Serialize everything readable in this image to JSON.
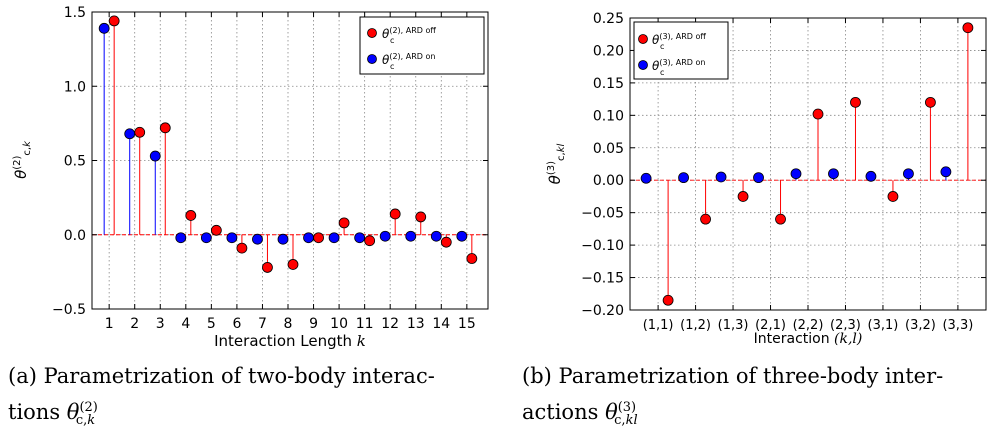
{
  "charts": {
    "a": {
      "xlabel": "Interaction Length k",
      "ylabel": "θ(2)c,k",
      "ylim": [
        -0.5,
        1.5
      ],
      "yticks": [
        -0.5,
        0.0,
        0.5,
        1.0,
        1.5
      ],
      "yticklabels": [
        "−0.5",
        "0.0",
        "0.5",
        "1.0",
        "1.5"
      ],
      "categories": [
        "1",
        "2",
        "3",
        "4",
        "5",
        "6",
        "7",
        "8",
        "9",
        "10",
        "11",
        "12",
        "13",
        "14",
        "15"
      ],
      "caption": "(a) Parametrization of two-body interactions θ(2)c,k"
    },
    "b": {
      "xlabel": "Interaction (k,l)",
      "ylabel": "θ(3)c,kl",
      "ylim": [
        -0.2,
        0.25
      ],
      "yticks": [
        -0.2,
        -0.15,
        -0.1,
        -0.05,
        0.0,
        0.05,
        0.1,
        0.15,
        0.2,
        0.25
      ],
      "yticklabels": [
        "−0.20",
        "−0.15",
        "−0.10",
        "−0.05",
        "0.00",
        "0.05",
        "0.10",
        "0.15",
        "0.20",
        "0.25"
      ],
      "categories": [
        "(1,1)",
        "(1,2)",
        "(1,3)",
        "(2,1)",
        "(2,2)",
        "(2,3)",
        "(3,1)",
        "(3,2)",
        "(3,3)"
      ],
      "caption": "(b) Parametrization of three-body interactions θ(3)c,kl"
    }
  },
  "legend": {
    "a_off": "θ(2), ARD off",
    "a_on": "θ(2), ARD on",
    "b_off": "θ(3), ARD off",
    "b_on": "θ(3), ARD on"
  },
  "colors": {
    "ard_off": "#ff0000",
    "ard_on": "#0000ff"
  },
  "chart_data": [
    {
      "type": "scatter",
      "style": "stem",
      "xlabel": "Interaction Length k",
      "ylabel": "θ(2)c,k",
      "ylim": [
        -0.5,
        1.5
      ],
      "grid": true,
      "legend_position": "top-right",
      "categories": [
        1,
        2,
        3,
        4,
        5,
        6,
        7,
        8,
        9,
        10,
        11,
        12,
        13,
        14,
        15
      ],
      "series": [
        {
          "name": "θ(2), ARD off",
          "color": "#ff0000",
          "values": [
            1.44,
            0.69,
            0.72,
            0.13,
            0.03,
            -0.09,
            -0.22,
            -0.2,
            -0.02,
            0.08,
            -0.04,
            0.14,
            0.12,
            -0.05,
            -0.16
          ]
        },
        {
          "name": "θ(2), ARD on",
          "color": "#0000ff",
          "values": [
            1.39,
            0.68,
            0.53,
            -0.02,
            -0.02,
            -0.02,
            -0.03,
            -0.03,
            -0.02,
            -0.02,
            -0.02,
            -0.01,
            -0.01,
            -0.01,
            -0.01
          ]
        }
      ]
    },
    {
      "type": "scatter",
      "style": "stem",
      "xlabel": "Interaction (k,l)",
      "ylabel": "θ(3)c,kl",
      "ylim": [
        -0.2,
        0.25
      ],
      "grid": true,
      "legend_position": "top-left",
      "categories": [
        "(1,1)",
        "(1,2)",
        "(1,3)",
        "(2,1)",
        "(2,2)",
        "(2,3)",
        "(3,1)",
        "(3,2)",
        "(3,3)"
      ],
      "series": [
        {
          "name": "θ(3), ARD off",
          "color": "#ff0000",
          "values": [
            -0.185,
            -0.06,
            -0.025,
            -0.06,
            0.102,
            0.12,
            -0.025,
            0.12,
            0.235
          ]
        },
        {
          "name": "θ(3), ARD on",
          "color": "#0000ff",
          "values": [
            0.003,
            0.004,
            0.005,
            0.004,
            0.01,
            0.01,
            0.006,
            0.01,
            0.013
          ]
        }
      ]
    }
  ]
}
